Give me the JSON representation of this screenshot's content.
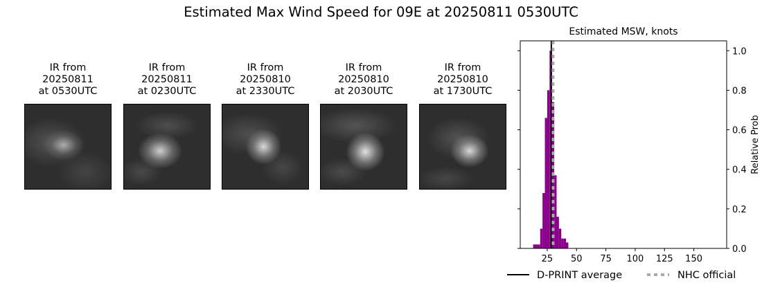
{
  "figure": {
    "title": "Estimated Max Wind Speed for 09E at 20250811 0530UTC"
  },
  "ir_panels": [
    {
      "title": "IR from\n20250811\nat 0530UTC",
      "image": "satellite-ir-image"
    },
    {
      "title": "IR from\n20250811\nat 0230UTC",
      "image": "satellite-ir-image"
    },
    {
      "title": "IR from\n20250810\nat 2330UTC",
      "image": "satellite-ir-image"
    },
    {
      "title": "IR from\n20250810\nat 2030UTC",
      "image": "satellite-ir-image"
    },
    {
      "title": "IR from\n20250810\nat 1730UTC",
      "image": "satellite-ir-image"
    }
  ],
  "chart_data": {
    "type": "bar",
    "title": "Estimated MSW, knots",
    "xlabel": "",
    "ylabel": "Relative Prob",
    "xlim": [
      2,
      178
    ],
    "ylim": [
      0,
      1.05
    ],
    "xticks": [
      25,
      50,
      75,
      100,
      125,
      150
    ],
    "yticks": [
      0.0,
      0.2,
      0.4,
      0.6,
      0.8,
      1.0
    ],
    "ytick_labels": [
      "0.0",
      "0.2",
      "0.4",
      "0.6",
      "0.8",
      "1.0"
    ],
    "bin_width": 2,
    "bins": [
      {
        "x": 14,
        "value": 0.02
      },
      {
        "x": 16,
        "value": 0.02
      },
      {
        "x": 18,
        "value": 0.02
      },
      {
        "x": 20,
        "value": 0.1
      },
      {
        "x": 22,
        "value": 0.28
      },
      {
        "x": 24,
        "value": 0.66
      },
      {
        "x": 26,
        "value": 0.8
      },
      {
        "x": 28,
        "value": 1.0
      },
      {
        "x": 30,
        "value": 0.74
      },
      {
        "x": 32,
        "value": 0.37
      },
      {
        "x": 34,
        "value": 0.16
      },
      {
        "x": 36,
        "value": 0.1
      },
      {
        "x": 38,
        "value": 0.05
      },
      {
        "x": 40,
        "value": 0.05
      },
      {
        "x": 42,
        "value": 0.03
      }
    ],
    "bar_color": "#8b008b",
    "dprint_average": 28.5,
    "nhc_official": 30,
    "legend": [
      {
        "label": "D-PRINT average",
        "style": "solid",
        "color": "#000000"
      },
      {
        "label": "NHC official",
        "style": "dotted",
        "color": "#aaaaaa"
      }
    ],
    "legend_placement": "bottom",
    "grid": false
  }
}
